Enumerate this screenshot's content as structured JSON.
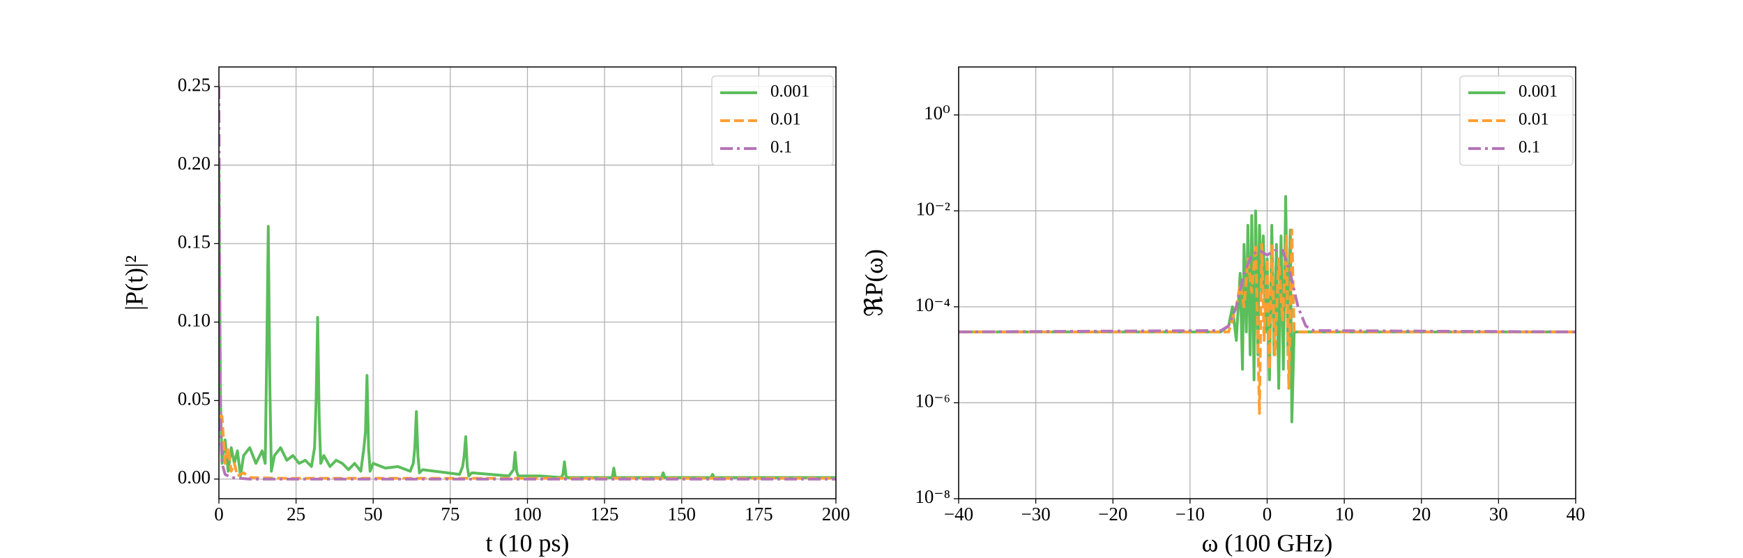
{
  "chart_data": [
    {
      "type": "line",
      "xlabel": "t (10 ps)",
      "ylabel": "|P(t)|²",
      "xlim": [
        0,
        200
      ],
      "ylim": [
        -0.0125,
        0.2625
      ],
      "xticks": [
        0,
        25,
        50,
        75,
        100,
        125,
        150,
        175,
        200
      ],
      "yticks": [
        {
          "value": 0,
          "label": "0.00"
        },
        {
          "value": 0.05,
          "label": "0.05"
        },
        {
          "value": 0.1,
          "label": "0.10"
        },
        {
          "value": 0.15,
          "label": "0.15"
        },
        {
          "value": 0.2,
          "label": "0.20"
        },
        {
          "value": 0.25,
          "label": "0.25"
        }
      ],
      "grid": true,
      "legend": "upper right",
      "series": [
        {
          "name": "0.001",
          "color": "#5bbd5b",
          "linestyle": "solid",
          "x": [
            0,
            0.5,
            1,
            2,
            3,
            4,
            5,
            6,
            7,
            8,
            10,
            12,
            14,
            15,
            15.5,
            16,
            16.5,
            17,
            18,
            20,
            22,
            24,
            26,
            28,
            30,
            31,
            31.5,
            32,
            32.5,
            33,
            34,
            36,
            38,
            40,
            42,
            44,
            46,
            47,
            47.5,
            48,
            48.5,
            49,
            50,
            54,
            58,
            62,
            63,
            63.5,
            64,
            64.5,
            65,
            66,
            70,
            74,
            78,
            79,
            79.5,
            80,
            80.5,
            81,
            82,
            88,
            94,
            95.5,
            96,
            96.5,
            97,
            104,
            111,
            111.5,
            112,
            112.5,
            113,
            120,
            127.5,
            128,
            128.5,
            136,
            143.5,
            144,
            144.5,
            152,
            159.5,
            160,
            160.5,
            170,
            180,
            190,
            200
          ],
          "values": [
            0.2,
            0.05,
            0.01,
            0.025,
            0.005,
            0.02,
            0.01,
            0.018,
            0.002,
            0.015,
            0.02,
            0.01,
            0.018,
            0.01,
            0.08,
            0.161,
            0.06,
            0.005,
            0.015,
            0.02,
            0.012,
            0.015,
            0.01,
            0.012,
            0.008,
            0.02,
            0.05,
            0.103,
            0.04,
            0.01,
            0.015,
            0.008,
            0.012,
            0.01,
            0.006,
            0.01,
            0.005,
            0.02,
            0.03,
            0.066,
            0.02,
            0.005,
            0.01,
            0.007,
            0.008,
            0.005,
            0.01,
            0.02,
            0.043,
            0.015,
            0.004,
            0.006,
            0.005,
            0.004,
            0.003,
            0.008,
            0.015,
            0.027,
            0.008,
            0.002,
            0.004,
            0.003,
            0.002,
            0.006,
            0.017,
            0.005,
            0.002,
            0.002,
            0.001,
            0.003,
            0.011,
            0.002,
            0.001,
            0.001,
            0.001,
            0.007,
            0.001,
            0.001,
            0.001,
            0.004,
            0.001,
            0.001,
            0.001,
            0.003,
            0.001,
            0.001,
            0.001,
            0.001,
            0.001
          ]
        },
        {
          "name": "0.01",
          "color": "#ff9f33",
          "linestyle": "dashed",
          "x": [
            0,
            1,
            2,
            3,
            4,
            5,
            6,
            8,
            10,
            20,
            200
          ],
          "values": [
            0.04,
            0.04,
            0.01,
            0.02,
            0.005,
            0.01,
            0.002,
            0.004,
            0.001,
            0.0005,
            0.0005
          ]
        },
        {
          "name": "0.1",
          "color": "#b574b8",
          "linestyle": "dashdot",
          "x": [
            0,
            0.3,
            0.6,
            1,
            2,
            4,
            10,
            200
          ],
          "values": [
            0.25,
            0.1,
            0.03,
            0.01,
            0.003,
            0.001,
            0,
            0
          ]
        }
      ]
    },
    {
      "type": "line",
      "xlabel": "ω (100 GHz)",
      "ylabel": "ℜP(ω)",
      "xlim": [
        -40,
        40
      ],
      "ylim": [
        1e-08,
        10
      ],
      "log_y": true,
      "xticks": [
        {
          "value": -40,
          "label": "−40"
        },
        {
          "value": -30,
          "label": "−30"
        },
        {
          "value": -20,
          "label": "−20"
        },
        {
          "value": -10,
          "label": "−10"
        },
        0,
        10,
        20,
        30,
        40
      ],
      "yticks": [
        {
          "value": 1e-08,
          "label": "10⁻⁸"
        },
        {
          "value": 1e-06,
          "label": "10⁻⁶"
        },
        {
          "value": 0.0001,
          "label": "10⁻⁴"
        },
        {
          "value": 0.01,
          "label": "10⁻²"
        },
        {
          "value": 1,
          "label": "10⁰"
        }
      ],
      "grid": true,
      "legend": "upper right",
      "series": [
        {
          "name": "0.001",
          "color": "#5bbd5b",
          "linestyle": "solid",
          "x": [
            -40,
            -6,
            -5,
            -4.5,
            -4,
            -3.5,
            -3.2,
            -3,
            -2.7,
            -2.5,
            -2.2,
            -2,
            -1.7,
            -1.5,
            -1.2,
            -1,
            -0.7,
            -0.5,
            -0.2,
            0,
            0.3,
            0.6,
            0.9,
            1.2,
            1.5,
            1.8,
            2.1,
            2.4,
            2.7,
            3,
            3.2,
            3.5,
            40
          ],
          "values": [
            3e-05,
            3e-05,
            4e-05,
            0.0001,
            2e-05,
            0.0005,
            5e-06,
            0.002,
            3e-05,
            0.005,
            1e-05,
            0.008,
            3e-06,
            0.01,
            1e-05,
            0.005,
            0.0002,
            0.003,
            3e-05,
            0.001,
            3e-06,
            0.005,
            1e-05,
            0.002,
            2e-06,
            0.003,
            5e-06,
            0.02,
            1e-05,
            0.004,
            4e-07,
            3e-05,
            3e-05
          ]
        },
        {
          "name": "0.01",
          "color": "#ff9f33",
          "linestyle": "dashed",
          "x": [
            -40,
            -5,
            -4,
            -3.5,
            -3,
            -2.5,
            -2,
            -1.5,
            -1.2,
            -1,
            -0.7,
            -0.4,
            0,
            0.3,
            0.6,
            1,
            1.5,
            2,
            2.5,
            2.8,
            3.2,
            3.5,
            40
          ],
          "values": [
            3e-05,
            3e-05,
            0.0001,
            0.0003,
            0.0001,
            0.001,
            0.0002,
            0.002,
            2e-05,
            6e-07,
            0.002,
            2e-05,
            0.001,
            5e-06,
            0.002,
            1e-05,
            0.001,
            5e-05,
            0.003,
            2e-06,
            0.004,
            3e-05,
            3e-05
          ]
        },
        {
          "name": "0.1",
          "color": "#b574b8",
          "linestyle": "dashdot",
          "x": [
            -40,
            -6,
            -5,
            -4,
            -3,
            -2,
            -1,
            0,
            1,
            2,
            3,
            4,
            5,
            6,
            40
          ],
          "values": [
            3e-05,
            3.2e-05,
            4e-05,
            0.0001,
            0.0005,
            0.0012,
            0.0015,
            0.0012,
            0.0015,
            0.0015,
            0.0005,
            0.0001,
            4e-05,
            3.2e-05,
            3e-05
          ]
        }
      ]
    }
  ]
}
